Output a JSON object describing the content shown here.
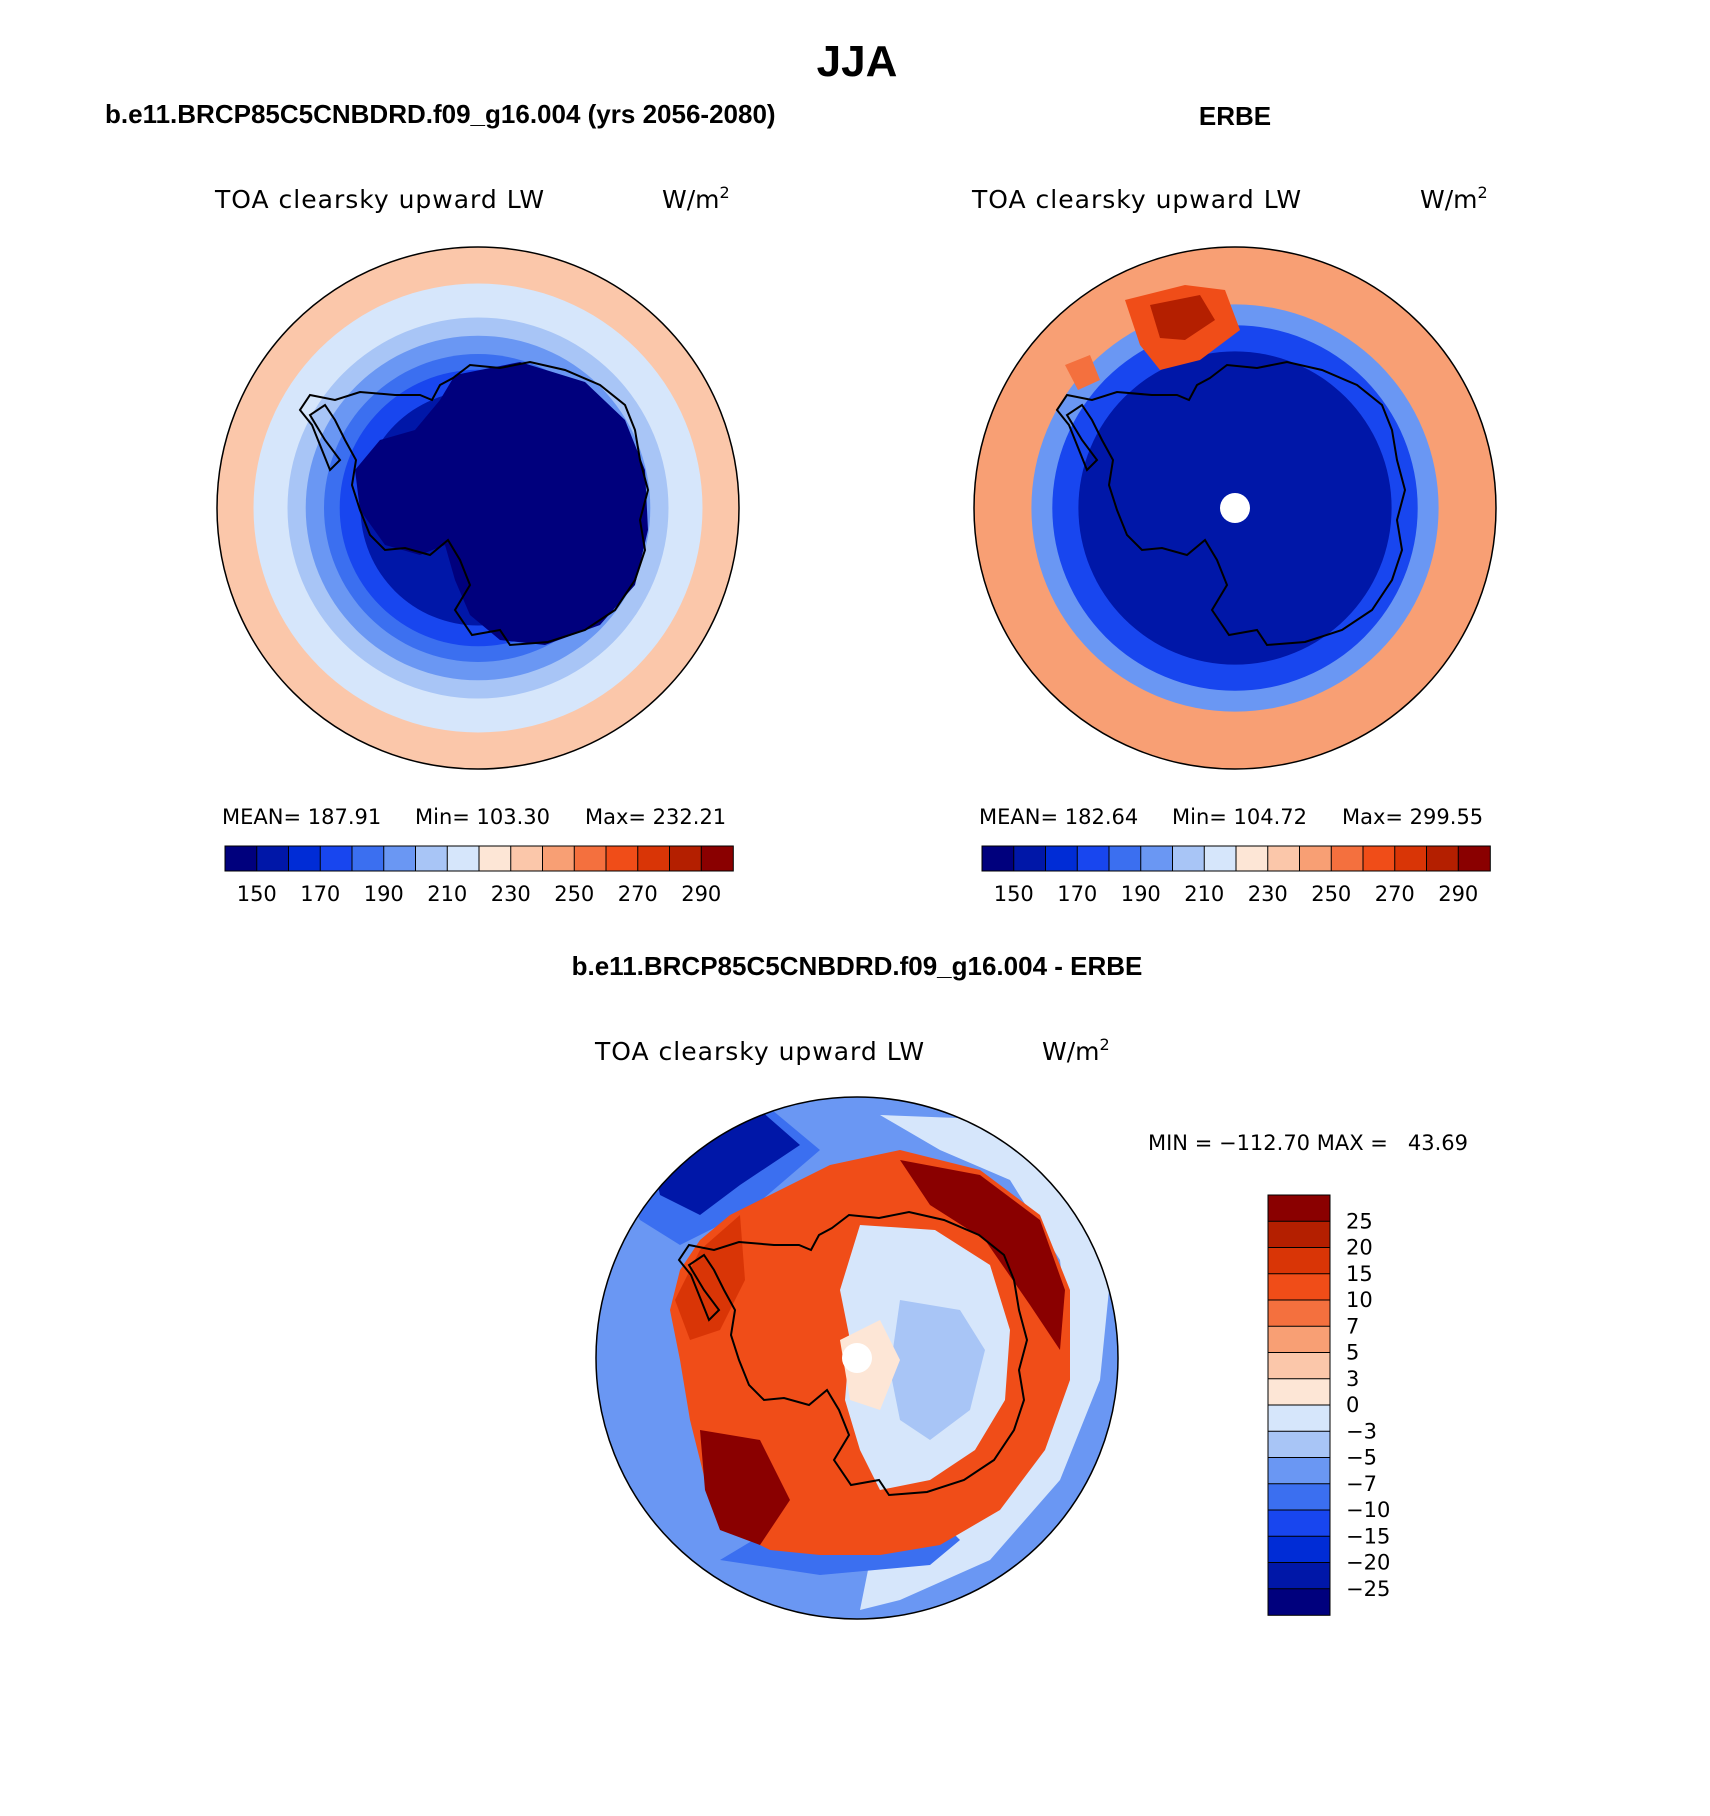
{
  "figure": {
    "main_title": "JJA",
    "panels": [
      {
        "id": "model",
        "heading": "b.e11.BRCP85C5CNBDRD.f09_g16.004 (yrs 2056-2080)",
        "variable": "TOA clearsky upward LW",
        "units": "W/m",
        "units_exp": "2",
        "stats": {
          "mean": "MEAN= 187.91",
          "min": "Min= 103.30",
          "max": "Max= 232.21"
        },
        "colorbar_ticks": [
          "150",
          "170",
          "190",
          "210",
          "230",
          "250",
          "270",
          "290"
        ],
        "colors": [
          "#00007d",
          "#0017a8",
          "#002cd6",
          "#1846ef",
          "#3b6ff0",
          "#6a97f3",
          "#a8c5f6",
          "#d6e6fb",
          "#fde6d6",
          "#fbc7aa",
          "#f89f74",
          "#f4703e",
          "#f04d18",
          "#d93506",
          "#b41f00",
          "#8a0000"
        ],
        "rings": [
          {
            "band": "230",
            "fraction": 1.0
          },
          {
            "band": "210",
            "fraction": 0.86
          },
          {
            "band": "200",
            "fraction": 0.73
          },
          {
            "band": "190",
            "fraction": 0.66
          },
          {
            "band": "180",
            "fraction": 0.59
          },
          {
            "band": "170",
            "fraction": 0.53
          },
          {
            "band": "150",
            "fraction": 0.45
          }
        ]
      },
      {
        "id": "obs",
        "heading": "ERBE",
        "variable": "TOA clearsky upward LW",
        "units": "W/m",
        "units_exp": "2",
        "stats": {
          "mean": "MEAN= 182.64",
          "min": "Min= 104.72",
          "max": "Max= 299.55"
        },
        "colorbar_ticks": [
          "150",
          "170",
          "190",
          "210",
          "230",
          "250",
          "270",
          "290"
        ],
        "colors": [
          "#00007d",
          "#0017a8",
          "#002cd6",
          "#1846ef",
          "#3b6ff0",
          "#6a97f3",
          "#a8c5f6",
          "#d6e6fb",
          "#fde6d6",
          "#fbc7aa",
          "#f89f74",
          "#f4703e",
          "#f04d18",
          "#d93506",
          "#b41f00",
          "#8a0000"
        ],
        "rings": [
          {
            "band": "240",
            "fraction": 1.0
          },
          {
            "band": "190",
            "fraction": 0.78
          },
          {
            "band": "170",
            "fraction": 0.7
          },
          {
            "band": "150",
            "fraction": 0.6
          }
        ]
      }
    ],
    "difference": {
      "heading": "b.e11.BRCP85C5CNBDRD.f09_g16.004 - ERBE",
      "variable": "TOA clearsky upward LW",
      "units": "W/m",
      "units_exp": "2",
      "minmax": "MIN = −112.70 MAX =   43.69",
      "colorbar_ticks": [
        "25",
        "20",
        "15",
        "10",
        "7",
        "5",
        "3",
        "0",
        "−3",
        "−5",
        "−7",
        "−10",
        "−15",
        "−20",
        "−25"
      ],
      "colors": [
        "#8a0000",
        "#b41f00",
        "#d93506",
        "#f04d18",
        "#f4703e",
        "#f89f74",
        "#fbc7aa",
        "#fde6d6",
        "#d6e6fb",
        "#a8c5f6",
        "#6a97f3",
        "#3b6ff0",
        "#1846ef",
        "#002cd6",
        "#0017a8",
        "#00007d"
      ]
    }
  }
}
